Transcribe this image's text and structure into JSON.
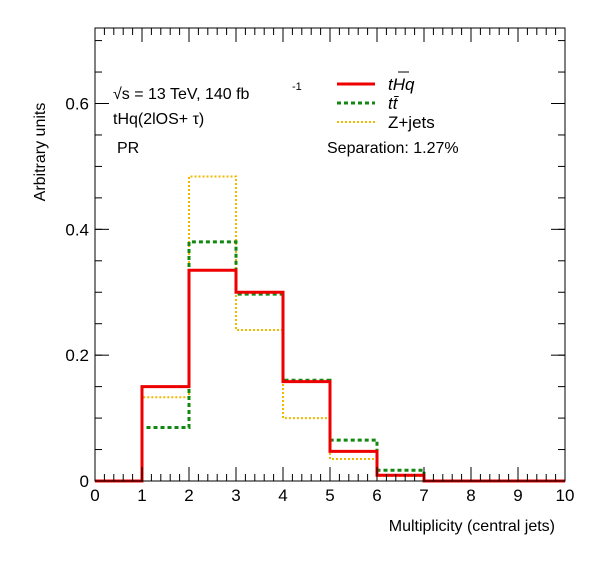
{
  "chart_data": {
    "type": "histogram",
    "x_label": "Multiplicity (central jets)",
    "y_label": "Arbitrary units",
    "xlim": [
      0,
      10
    ],
    "ylim": [
      0,
      0.72
    ],
    "x_ticks": [
      "0",
      "1",
      "2",
      "3",
      "4",
      "5",
      "6",
      "7",
      "8",
      "9",
      "10"
    ],
    "y_ticks": [
      "0",
      "0.2",
      "0.4",
      "0.6"
    ],
    "bin_edges": [
      0,
      1,
      2,
      3,
      4,
      5,
      6,
      7,
      8,
      9,
      10
    ],
    "series": [
      {
        "name": "tHq",
        "color": "#ee0000",
        "style": "solid",
        "values": [
          0,
          0.15,
          0.335,
          0.3,
          0.158,
          0.047,
          0.009,
          0,
          0,
          0
        ]
      },
      {
        "name": "tt̄",
        "color": "#118811",
        "style": "dashed",
        "values": [
          0,
          0.085,
          0.38,
          0.297,
          0.16,
          0.065,
          0.017,
          0,
          0,
          0
        ]
      },
      {
        "name": "Z+jets",
        "color": "#f0b800",
        "style": "dotted",
        "values": [
          0,
          0.133,
          0.484,
          0.24,
          0.1,
          0.035,
          0.008,
          0,
          0,
          0
        ]
      }
    ],
    "annotations": {
      "energy": "√s = 13 TeV, 140 fb",
      "energy_sup": "-1",
      "channel": "tHq(2lOS+ τ)",
      "region": "PR",
      "separation": "Separation: 1.27%"
    },
    "legend_position": "top-right"
  }
}
